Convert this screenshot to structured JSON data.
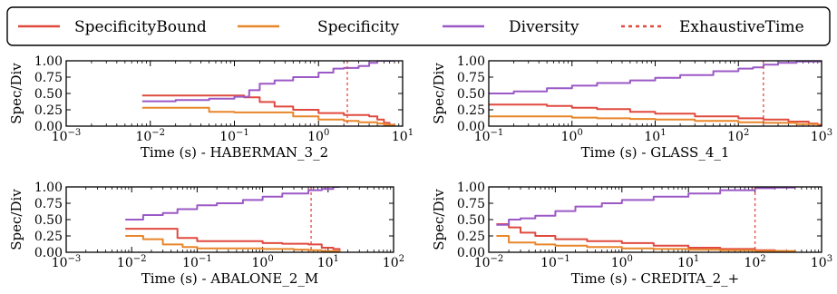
{
  "legend": {
    "entries": [
      {
        "label": "SpecificityBound",
        "color": "#e04a3f",
        "style": "solid"
      },
      {
        "label": "Specificity",
        "color": "#e8862a",
        "style": "solid"
      },
      {
        "label": "Diversity",
        "color": "#9b59c6",
        "style": "solid"
      },
      {
        "label": "ExhaustiveTime",
        "color": "#e04a3f",
        "style": "dashed"
      }
    ]
  },
  "chart_data": [
    {
      "type": "line",
      "xlabel": "Time (s) - HABERMAN_3_2",
      "ylabel": "Spec/Div",
      "x_scale": "log",
      "xlim": [
        0.001,
        10
      ],
      "ylim": [
        0,
        1
      ],
      "xticks": [
        {
          "base": "10",
          "exp": "−3",
          "v": 0.001
        },
        {
          "base": "10",
          "exp": "−2",
          "v": 0.01
        },
        {
          "base": "10",
          "exp": "−1",
          "v": 0.1
        },
        {
          "base": "10",
          "exp": "0",
          "v": 1
        },
        {
          "base": "10",
          "exp": "1",
          "v": 10
        }
      ],
      "yticks": [
        {
          "label": "0.00",
          "v": 0
        },
        {
          "label": "0.25",
          "v": 0.25
        },
        {
          "label": "0.50",
          "v": 0.5
        },
        {
          "label": "0.75",
          "v": 0.75
        },
        {
          "label": "1.00",
          "v": 1
        }
      ],
      "exhaustive_time": 2.2,
      "series": [
        {
          "key": "bound",
          "color": "#e04a3f",
          "x": [
            0.008,
            0.1,
            0.13,
            0.2,
            0.3,
            0.5,
            1,
            2,
            4,
            5,
            6,
            7,
            8
          ],
          "y": [
            0.47,
            0.47,
            0.44,
            0.37,
            0.3,
            0.25,
            0.2,
            0.17,
            0.15,
            0.1,
            0.05,
            0.02,
            0.0
          ]
        },
        {
          "key": "spec",
          "color": "#e8862a",
          "x": [
            0.008,
            0.02,
            0.05,
            0.1,
            0.3,
            0.5,
            1,
            2,
            3,
            5,
            6,
            8
          ],
          "y": [
            0.28,
            0.28,
            0.22,
            0.21,
            0.21,
            0.15,
            0.1,
            0.08,
            0.06,
            0.04,
            0.02,
            0.0
          ]
        },
        {
          "key": "div",
          "color": "#9b59c6",
          "x": [
            0.008,
            0.02,
            0.05,
            0.1,
            0.15,
            0.2,
            0.3,
            0.5,
            1,
            1.5,
            2,
            3,
            4,
            5,
            8
          ],
          "y": [
            0.38,
            0.4,
            0.42,
            0.45,
            0.55,
            0.65,
            0.7,
            0.75,
            0.82,
            0.88,
            0.89,
            0.92,
            0.97,
            1.0,
            1.0
          ]
        }
      ]
    },
    {
      "type": "line",
      "xlabel": "Time (s) - GLASS_4_1",
      "ylabel": "Spec/Div",
      "x_scale": "log",
      "xlim": [
        0.1,
        1000
      ],
      "ylim": [
        0,
        1
      ],
      "xticks": [
        {
          "base": "10",
          "exp": "−1",
          "v": 0.1
        },
        {
          "base": "10",
          "exp": "0",
          "v": 1
        },
        {
          "base": "10",
          "exp": "1",
          "v": 10
        },
        {
          "base": "10",
          "exp": "2",
          "v": 100
        },
        {
          "base": "10",
          "exp": "3",
          "v": 1000
        }
      ],
      "yticks": [
        {
          "label": "0.00",
          "v": 0
        },
        {
          "label": "0.25",
          "v": 0.25
        },
        {
          "label": "0.50",
          "v": 0.5
        },
        {
          "label": "0.75",
          "v": 0.75
        },
        {
          "label": "1.00",
          "v": 1
        }
      ],
      "exhaustive_time": 200,
      "series": [
        {
          "key": "bound",
          "color": "#e04a3f",
          "x": [
            0.1,
            0.5,
            1,
            2,
            5,
            10,
            30,
            100,
            200,
            400,
            700,
            900,
            1000
          ],
          "y": [
            0.33,
            0.31,
            0.28,
            0.26,
            0.22,
            0.19,
            0.15,
            0.12,
            0.1,
            0.07,
            0.04,
            0.02,
            0.0
          ]
        },
        {
          "key": "spec",
          "color": "#e8862a",
          "x": [
            0.1,
            0.5,
            1,
            2,
            5,
            10,
            30,
            100,
            200,
            500,
            900
          ],
          "y": [
            0.15,
            0.15,
            0.13,
            0.12,
            0.11,
            0.1,
            0.08,
            0.06,
            0.05,
            0.03,
            0.0
          ]
        },
        {
          "key": "div",
          "color": "#9b59c6",
          "x": [
            0.1,
            0.2,
            0.5,
            1,
            2,
            5,
            10,
            20,
            50,
            100,
            150,
            200,
            300,
            500,
            1000
          ],
          "y": [
            0.5,
            0.53,
            0.58,
            0.62,
            0.66,
            0.7,
            0.74,
            0.78,
            0.84,
            0.88,
            0.9,
            0.94,
            0.97,
            0.99,
            1.0
          ]
        }
      ]
    },
    {
      "type": "line",
      "xlabel": "Time (s) - ABALONE_2_M",
      "ylabel": "Spec/Div",
      "x_scale": "log",
      "xlim": [
        0.001,
        100
      ],
      "ylim": [
        0,
        1
      ],
      "xticks": [
        {
          "base": "10",
          "exp": "−3",
          "v": 0.001
        },
        {
          "base": "10",
          "exp": "−2",
          "v": 0.01
        },
        {
          "base": "10",
          "exp": "−1",
          "v": 0.1
        },
        {
          "base": "10",
          "exp": "0",
          "v": 1
        },
        {
          "base": "10",
          "exp": "1",
          "v": 10
        },
        {
          "base": "10",
          "exp": "2",
          "v": 100
        }
      ],
      "yticks": [
        {
          "label": "0.00",
          "v": 0
        },
        {
          "label": "0.25",
          "v": 0.25
        },
        {
          "label": "0.50",
          "v": 0.5
        },
        {
          "label": "0.75",
          "v": 0.75
        },
        {
          "label": "1.00",
          "v": 1
        }
      ],
      "exhaustive_time": 5.5,
      "series": [
        {
          "key": "bound",
          "color": "#e04a3f",
          "x": [
            0.008,
            0.02,
            0.05,
            0.1,
            0.3,
            1,
            2,
            5,
            8,
            12,
            15
          ],
          "y": [
            0.36,
            0.36,
            0.22,
            0.17,
            0.17,
            0.14,
            0.13,
            0.12,
            0.07,
            0.05,
            0.0
          ]
        },
        {
          "key": "spec",
          "color": "#e8862a",
          "x": [
            0.008,
            0.015,
            0.03,
            0.06,
            0.1,
            0.3,
            1,
            3,
            5,
            8,
            15
          ],
          "y": [
            0.25,
            0.2,
            0.12,
            0.08,
            0.06,
            0.06,
            0.05,
            0.04,
            0.03,
            0.02,
            0.0
          ]
        },
        {
          "key": "div",
          "color": "#9b59c6",
          "x": [
            0.008,
            0.015,
            0.03,
            0.05,
            0.1,
            0.2,
            0.5,
            1,
            2,
            5,
            8,
            12,
            15
          ],
          "y": [
            0.5,
            0.57,
            0.6,
            0.66,
            0.72,
            0.75,
            0.8,
            0.85,
            0.9,
            0.95,
            0.97,
            1.0,
            1.0
          ]
        }
      ]
    },
    {
      "type": "line",
      "xlabel": "Time (s) - CREDITA_2_+",
      "ylabel": "Spec/Div",
      "x_scale": "log",
      "xlim": [
        0.01,
        1000
      ],
      "ylim": [
        0,
        1
      ],
      "xticks": [
        {
          "base": "10",
          "exp": "−2",
          "v": 0.01
        },
        {
          "base": "10",
          "exp": "−1",
          "v": 0.1
        },
        {
          "base": "10",
          "exp": "0",
          "v": 1
        },
        {
          "base": "10",
          "exp": "1",
          "v": 10
        },
        {
          "base": "10",
          "exp": "2",
          "v": 100
        },
        {
          "base": "10",
          "exp": "3",
          "v": 1000
        }
      ],
      "yticks": [
        {
          "label": "0.00",
          "v": 0
        },
        {
          "label": "0.25",
          "v": 0.25
        },
        {
          "label": "0.50",
          "v": 0.5
        },
        {
          "label": "0.75",
          "v": 0.75
        },
        {
          "label": "1.00",
          "v": 1
        }
      ],
      "exhaustive_time": 100,
      "series": [
        {
          "key": "bound",
          "color": "#e04a3f",
          "x": [
            0.013,
            0.02,
            0.03,
            0.05,
            0.1,
            0.3,
            1,
            3,
            10,
            30,
            100,
            200,
            300,
            400
          ],
          "y": [
            0.43,
            0.38,
            0.3,
            0.25,
            0.2,
            0.17,
            0.14,
            0.1,
            0.07,
            0.05,
            0.03,
            0.02,
            0.01,
            0.0
          ]
        },
        {
          "key": "spec",
          "color": "#e8862a",
          "x": [
            0.013,
            0.02,
            0.05,
            0.1,
            0.3,
            1,
            3,
            10,
            30,
            100,
            400
          ],
          "y": [
            0.25,
            0.15,
            0.12,
            0.1,
            0.08,
            0.06,
            0.05,
            0.04,
            0.03,
            0.02,
            0.0
          ]
        },
        {
          "key": "div",
          "color": "#9b59c6",
          "x": [
            0.013,
            0.02,
            0.03,
            0.05,
            0.1,
            0.2,
            0.5,
            1,
            3,
            10,
            30,
            100,
            200,
            400
          ],
          "y": [
            0.42,
            0.5,
            0.52,
            0.56,
            0.63,
            0.7,
            0.75,
            0.8,
            0.85,
            0.9,
            0.95,
            0.98,
            0.99,
            1.0
          ]
        }
      ]
    }
  ]
}
